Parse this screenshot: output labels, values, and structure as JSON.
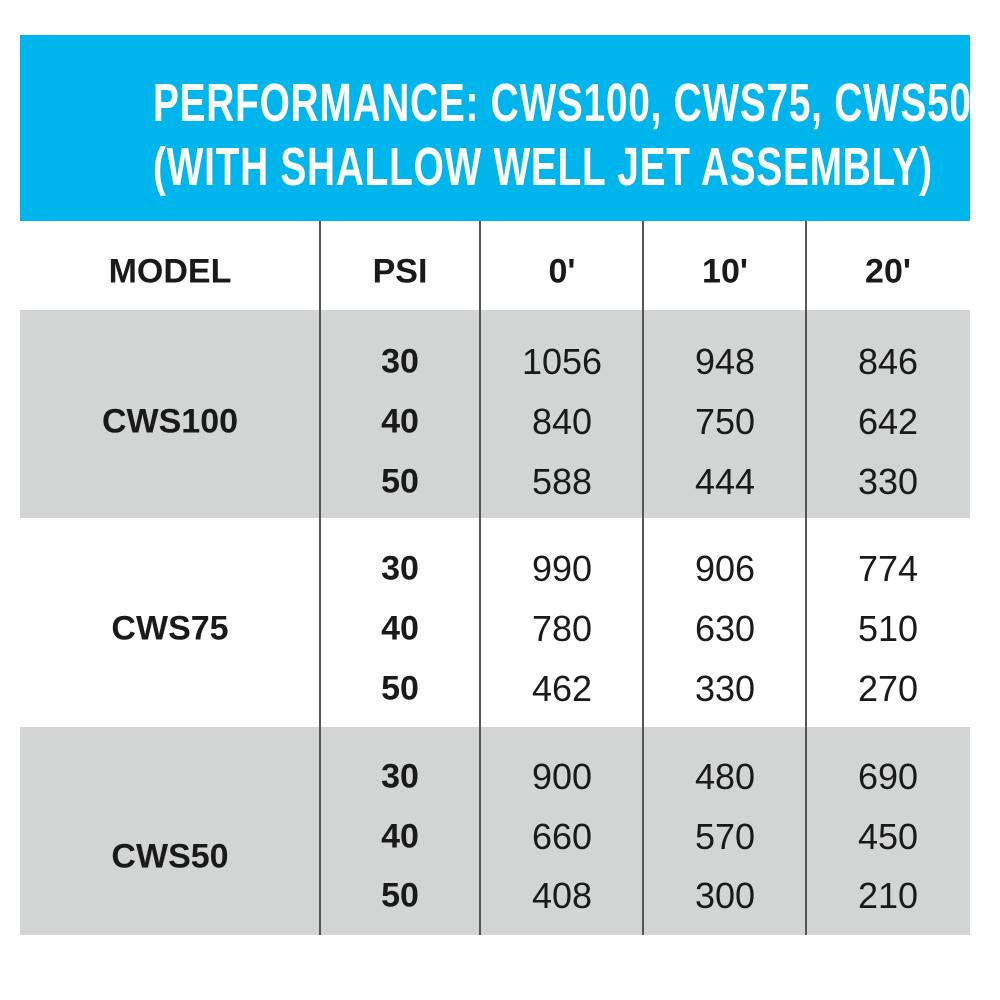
{
  "title": {
    "line1": "PERFORMANCE: CWS100, CWS75, CWS50",
    "line2": "(WITH SHALLOW WELL JET ASSEMBLY)"
  },
  "colors": {
    "banner": "#00b4ec",
    "band": "#d2d5d4"
  },
  "headers": [
    "MODEL",
    "PSI",
    "0'",
    "10'",
    "20'"
  ],
  "groups": [
    {
      "model": "CWS100",
      "rows": [
        {
          "psi": "30",
          "values": [
            "1056",
            "948",
            "846"
          ]
        },
        {
          "psi": "40",
          "values": [
            "840",
            "750",
            "642"
          ]
        },
        {
          "psi": "50",
          "values": [
            "588",
            "444",
            "330"
          ]
        }
      ]
    },
    {
      "model": "CWS75",
      "rows": [
        {
          "psi": "30",
          "values": [
            "990",
            "906",
            "774"
          ]
        },
        {
          "psi": "40",
          "values": [
            "780",
            "630",
            "510"
          ]
        },
        {
          "psi": "50",
          "values": [
            "462",
            "330",
            "270"
          ]
        }
      ]
    },
    {
      "model": "CWS50",
      "rows": [
        {
          "psi": "30",
          "values": [
            "900",
            "480",
            "690"
          ]
        },
        {
          "psi": "40",
          "values": [
            "660",
            "570",
            "450"
          ]
        },
        {
          "psi": "50",
          "values": [
            "408",
            "300",
            "210"
          ]
        }
      ]
    }
  ]
}
